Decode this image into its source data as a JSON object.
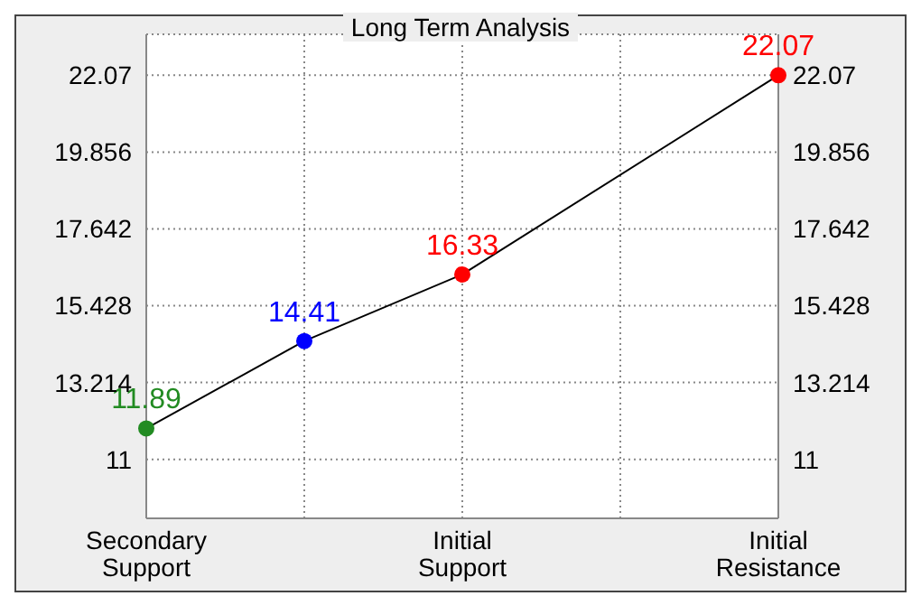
{
  "chart_data": {
    "type": "line",
    "title": "Long Term Analysis",
    "categories": [
      "Secondary Support",
      null,
      "Initial Support",
      null,
      "Initial Resistance"
    ],
    "series": [
      {
        "color": "#000000",
        "colors": [
          "#228b22",
          "#0000ff",
          "#ff0000",
          null,
          "#ff0000"
        ],
        "values": [
          11.89,
          14.41,
          16.33,
          null,
          22.07
        ]
      }
    ],
    "ylim": [
      9.3,
      23.25
    ],
    "yticks": [
      11,
      13.214,
      15.428,
      17.642,
      19.856,
      22.07
    ],
    "y2lim": [
      9.3,
      23.25
    ],
    "y2ticks": [
      11,
      13.214,
      15.428,
      17.642,
      19.856,
      22.07
    ],
    "grid": true,
    "marker": "circle",
    "line_style": "solid",
    "data_labels": true
  }
}
